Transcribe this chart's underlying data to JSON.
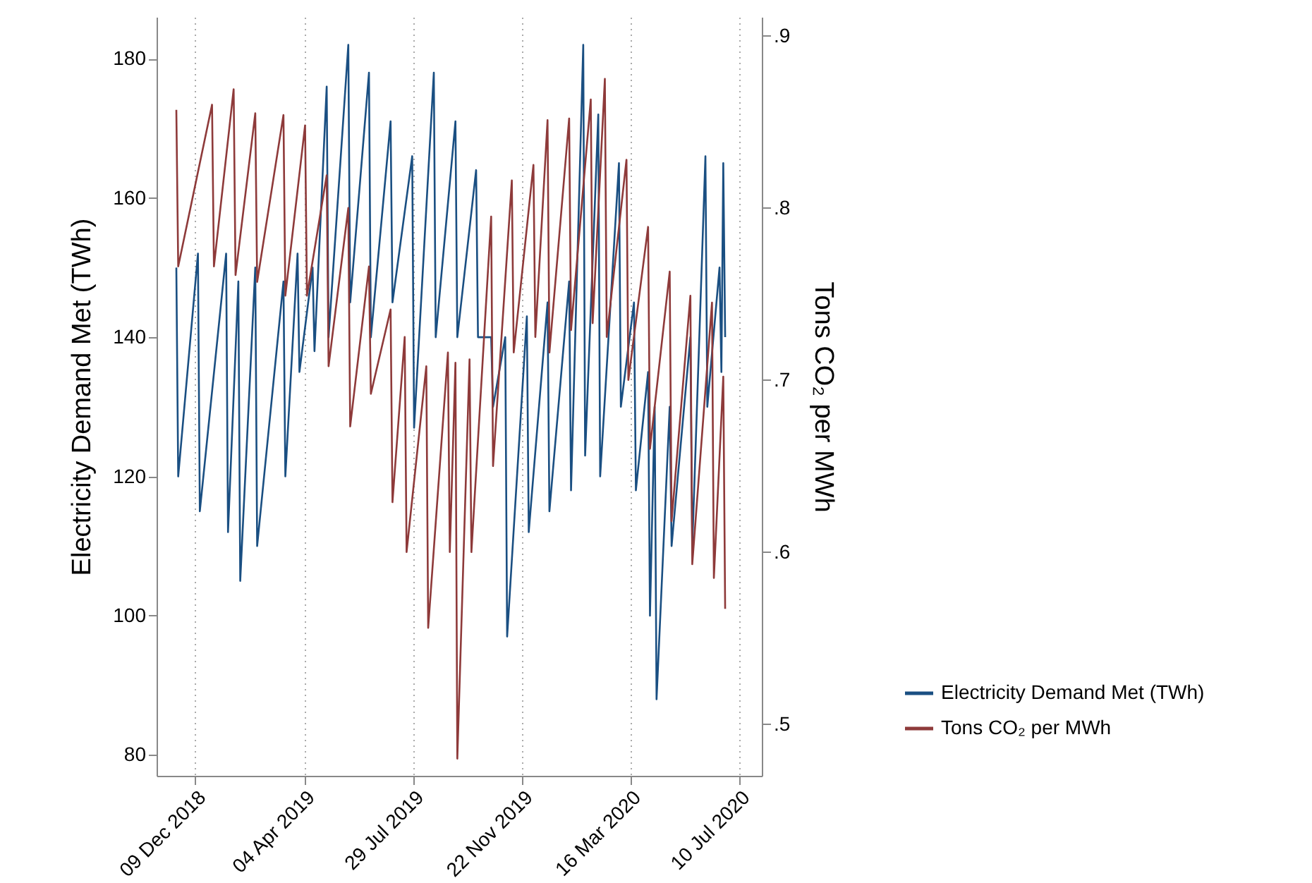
{
  "chart_data": {
    "type": "line",
    "ylabel": "Electricity Demand Met (TWh)",
    "y2label": "Tons CO₂ per MWh",
    "xlim": [
      "2018-10-29",
      "2020-08-03"
    ],
    "xticks": [
      {
        "value": "2018-12-09",
        "label": "09 Dec 2018"
      },
      {
        "value": "2019-04-04",
        "label": "04 Apr 2019"
      },
      {
        "value": "2019-07-29",
        "label": "29 Jul 2019"
      },
      {
        "value": "2019-11-22",
        "label": "22 Nov 2019"
      },
      {
        "value": "2020-03-16",
        "label": "16 Mar 2020"
      },
      {
        "value": "2020-07-10",
        "label": "10 Jul 2020"
      }
    ],
    "ylim": [
      77,
      186
    ],
    "yticks": [
      80,
      100,
      120,
      140,
      160,
      180
    ],
    "y2lim": [
      0.47,
      0.911
    ],
    "y2ticks": [
      {
        "value": 0.5,
        "label": ".5"
      },
      {
        "value": 0.6,
        "label": ".6"
      },
      {
        "value": 0.7,
        "label": ".7"
      },
      {
        "value": 0.8,
        "label": ".8"
      },
      {
        "value": 0.9,
        "label": ".9"
      }
    ],
    "grid": "x",
    "legend": "right",
    "line_style": "solid",
    "marker": "none",
    "series": [
      {
        "name": "Electricity Demand Met (TWh)",
        "color": "#1a4f82",
        "x": [
          "2018-11-19",
          "2018-11-21",
          "2018-12-12",
          "2018-12-14",
          "2019-01-11",
          "2019-01-13",
          "2019-01-24",
          "2019-01-26",
          "2019-02-11",
          "2019-02-13",
          "2019-03-13",
          "2019-03-15",
          "2019-03-28",
          "2019-03-30",
          "2019-04-13",
          "2019-04-15",
          "2019-04-28",
          "2019-04-30",
          "2019-05-21",
          "2019-05-23",
          "2019-06-12",
          "2019-06-14",
          "2019-07-05",
          "2019-07-07",
          "2019-07-28",
          "2019-07-30",
          "2019-08-20",
          "2019-08-22",
          "2019-09-12",
          "2019-09-14",
          "2019-10-04",
          "2019-10-06",
          "2019-10-20",
          "2019-10-22",
          "2019-11-04",
          "2019-11-06",
          "2019-11-27",
          "2019-11-29",
          "2019-12-19",
          "2019-12-21",
          "2020-01-11",
          "2020-01-13",
          "2020-01-26",
          "2020-01-28",
          "2020-02-11",
          "2020-02-13",
          "2020-03-04",
          "2020-03-06",
          "2020-03-20",
          "2020-03-22",
          "2020-04-04",
          "2020-04-06",
          "2020-04-11",
          "2020-04-13",
          "2020-04-27",
          "2020-04-29",
          "2020-05-19",
          "2020-05-21",
          "2020-06-04",
          "2020-06-06",
          "2020-06-19",
          "2020-06-21",
          "2020-06-23",
          "2020-06-25"
        ],
        "values": [
          150,
          120,
          152,
          115,
          152,
          112,
          148,
          105,
          150,
          110,
          148,
          120,
          152,
          135,
          150,
          138,
          176,
          140,
          182,
          145,
          178,
          140,
          171,
          145,
          166,
          127,
          178,
          140,
          171,
          140,
          164,
          140,
          140,
          130,
          140,
          97,
          143,
          112,
          145,
          115,
          148,
          118,
          182,
          123,
          172,
          120,
          165,
          130,
          145,
          118,
          135,
          100,
          130,
          88,
          130,
          110,
          140,
          110,
          166,
          130,
          150,
          135,
          165,
          140
        ]
      },
      {
        "name": "Tons CO₂ per MWh",
        "color": "#8e3a3a",
        "axis": "y2",
        "x": [
          "2018-11-19",
          "2018-11-21",
          "2018-12-27",
          "2018-12-29",
          "2019-01-19",
          "2019-01-21",
          "2019-02-11",
          "2019-02-13",
          "2019-03-13",
          "2019-03-15",
          "2019-04-05",
          "2019-04-07",
          "2019-04-28",
          "2019-04-30",
          "2019-05-21",
          "2019-05-23",
          "2019-06-12",
          "2019-06-14",
          "2019-07-05",
          "2019-07-07",
          "2019-07-20",
          "2019-07-22",
          "2019-08-12",
          "2019-08-14",
          "2019-09-04",
          "2019-09-06",
          "2019-09-12",
          "2019-09-14",
          "2019-09-27",
          "2019-09-29",
          "2019-10-20",
          "2019-10-22",
          "2019-11-11",
          "2019-11-13",
          "2019-12-04",
          "2019-12-06",
          "2019-12-19",
          "2019-12-21",
          "2020-01-11",
          "2020-01-13",
          "2020-02-03",
          "2020-02-05",
          "2020-02-18",
          "2020-02-20",
          "2020-03-12",
          "2020-03-14",
          "2020-04-04",
          "2020-04-06",
          "2020-04-27",
          "2020-04-29",
          "2020-05-19",
          "2020-05-21",
          "2020-06-11",
          "2020-06-13",
          "2020-06-23",
          "2020-06-25"
        ],
        "values": [
          0.857,
          0.766,
          0.86,
          0.766,
          0.869,
          0.761,
          0.855,
          0.757,
          0.854,
          0.749,
          0.848,
          0.749,
          0.819,
          0.708,
          0.8,
          0.673,
          0.766,
          0.692,
          0.741,
          0.629,
          0.725,
          0.6,
          0.708,
          0.556,
          0.716,
          0.6,
          0.71,
          0.48,
          0.712,
          0.6,
          0.795,
          0.65,
          0.816,
          0.716,
          0.825,
          0.725,
          0.851,
          0.716,
          0.852,
          0.729,
          0.863,
          0.733,
          0.875,
          0.725,
          0.828,
          0.7,
          0.789,
          0.66,
          0.763,
          0.618,
          0.749,
          0.593,
          0.745,
          0.585,
          0.702,
          0.567
        ]
      }
    ]
  }
}
